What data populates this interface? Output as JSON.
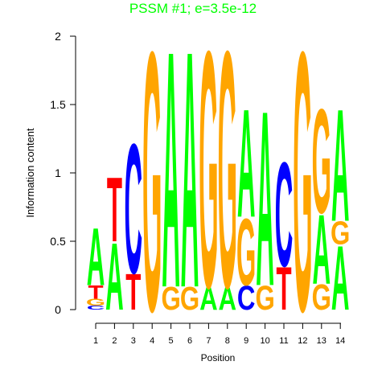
{
  "chart_data": {
    "type": "sequence-logo",
    "title": "PSSM #1; e=3.5e-12",
    "xlabel": "Position",
    "ylabel": "Information content",
    "ylim": [
      0,
      2
    ],
    "yticks": [
      "0",
      "0.5",
      "1",
      "1.5",
      "2"
    ],
    "positions": [
      "1",
      "2",
      "3",
      "4",
      "5",
      "6",
      "7",
      "8",
      "9",
      "10",
      "11",
      "12",
      "13",
      "14"
    ],
    "colors": {
      "A": "#00ff00",
      "C": "#0000ff",
      "G": "#ffa500",
      "T": "#ff0000"
    },
    "columns": [
      [
        {
          "letter": "C",
          "height": 0.03
        },
        {
          "letter": "G",
          "height": 0.05
        },
        {
          "letter": "T",
          "height": 0.1
        },
        {
          "letter": "A",
          "height": 0.43
        }
      ],
      [
        {
          "letter": "A",
          "height": 0.5
        },
        {
          "letter": "T",
          "height": 0.48
        }
      ],
      [
        {
          "letter": "T",
          "height": 0.27
        },
        {
          "letter": "C",
          "height": 0.97
        }
      ],
      [
        {
          "letter": "G",
          "height": 1.94
        }
      ],
      [
        {
          "letter": "G",
          "height": 0.17
        },
        {
          "letter": "A",
          "height": 1.77
        }
      ],
      [
        {
          "letter": "G",
          "height": 0.17
        },
        {
          "letter": "A",
          "height": 1.77
        }
      ],
      [
        {
          "letter": "A",
          "height": 0.17
        },
        {
          "letter": "G",
          "height": 1.77
        }
      ],
      [
        {
          "letter": "A",
          "height": 0.17
        },
        {
          "letter": "G",
          "height": 1.77
        }
      ],
      [
        {
          "letter": "C",
          "height": 0.18
        },
        {
          "letter": "G",
          "height": 0.5
        },
        {
          "letter": "A",
          "height": 0.81
        }
      ],
      [
        {
          "letter": "G",
          "height": 0.18
        },
        {
          "letter": "A",
          "height": 1.31
        }
      ],
      [
        {
          "letter": "T",
          "height": 0.32
        },
        {
          "letter": "C",
          "height": 0.78
        }
      ],
      [
        {
          "letter": "G",
          "height": 1.94
        }
      ],
      [
        {
          "letter": "G",
          "height": 0.19
        },
        {
          "letter": "A",
          "height": 0.52
        },
        {
          "letter": "G",
          "height": 0.78
        }
      ],
      [
        {
          "letter": "A",
          "height": 0.48
        },
        {
          "letter": "G",
          "height": 0.17
        },
        {
          "letter": "A",
          "height": 0.84
        }
      ]
    ]
  }
}
